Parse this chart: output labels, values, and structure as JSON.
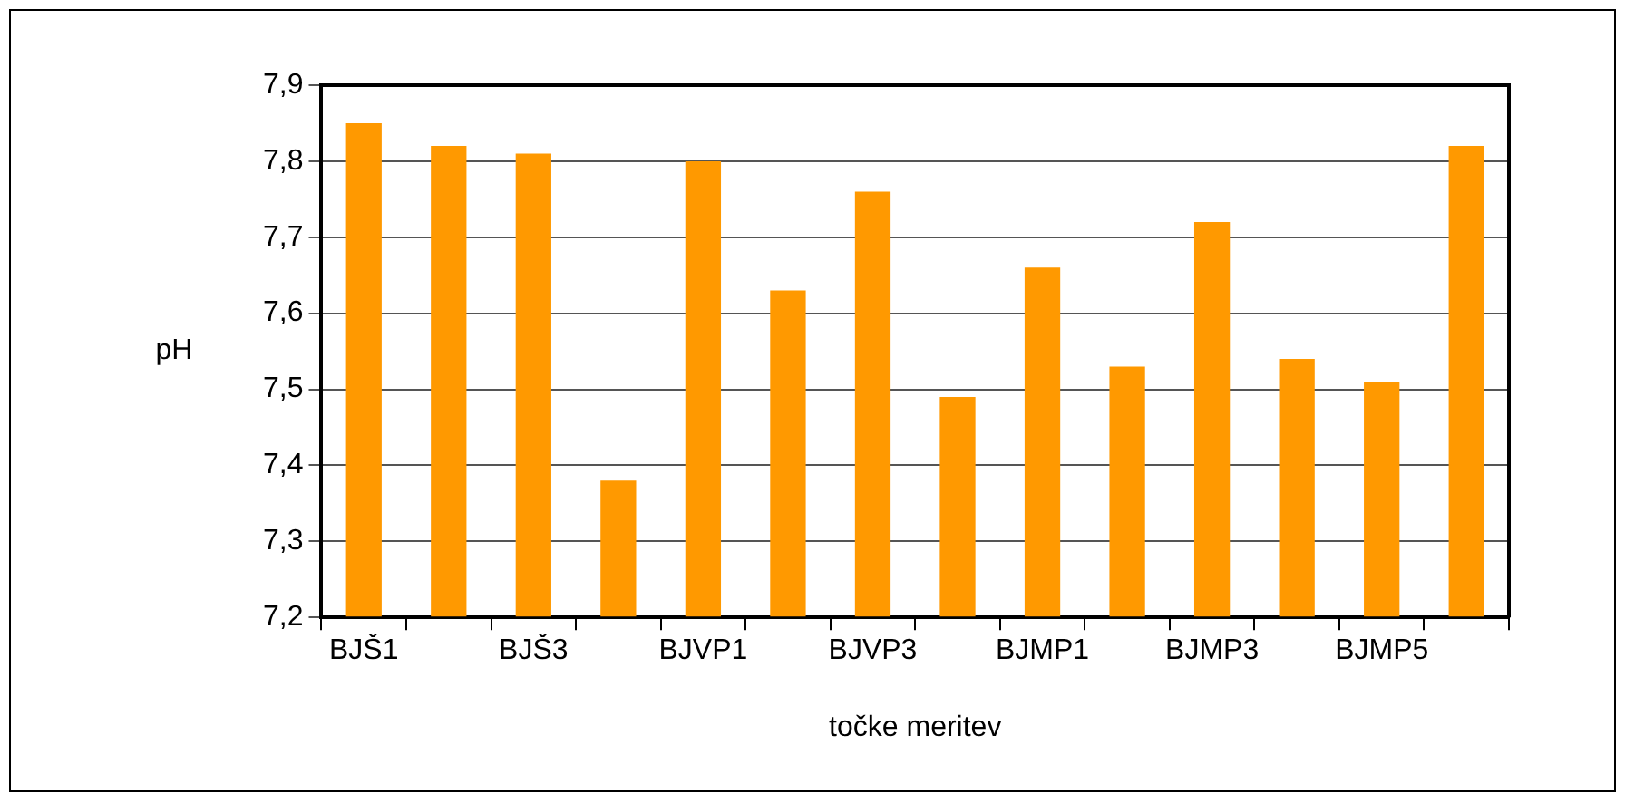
{
  "chart_data": {
    "type": "bar",
    "xlabel": "točke meritev",
    "ylabel": "pH",
    "categories": [
      "BJŠ1",
      null,
      "BJŠ3",
      null,
      "BJVP1",
      null,
      "BJVP3",
      null,
      "BJMP1",
      null,
      "BJMP3",
      null,
      "BJMP5",
      null
    ],
    "values": [
      7.85,
      7.82,
      7.81,
      7.38,
      7.8,
      7.63,
      7.76,
      7.49,
      7.66,
      7.53,
      7.72,
      7.54,
      7.51,
      7.82
    ],
    "color": "#ff9900",
    "ylim": [
      7.2,
      7.9
    ],
    "yticks": [
      {
        "value": 7.2,
        "label": "7,2"
      },
      {
        "value": 7.3,
        "label": "7,3"
      },
      {
        "value": 7.4,
        "label": "7,4"
      },
      {
        "value": 7.5,
        "label": "7,5"
      },
      {
        "value": 7.6,
        "label": "7,6"
      },
      {
        "value": 7.7,
        "label": "7,7"
      },
      {
        "value": 7.8,
        "label": "7,8"
      },
      {
        "value": 7.9,
        "label": "7,9"
      }
    ],
    "grid": "y",
    "legend": false
  }
}
